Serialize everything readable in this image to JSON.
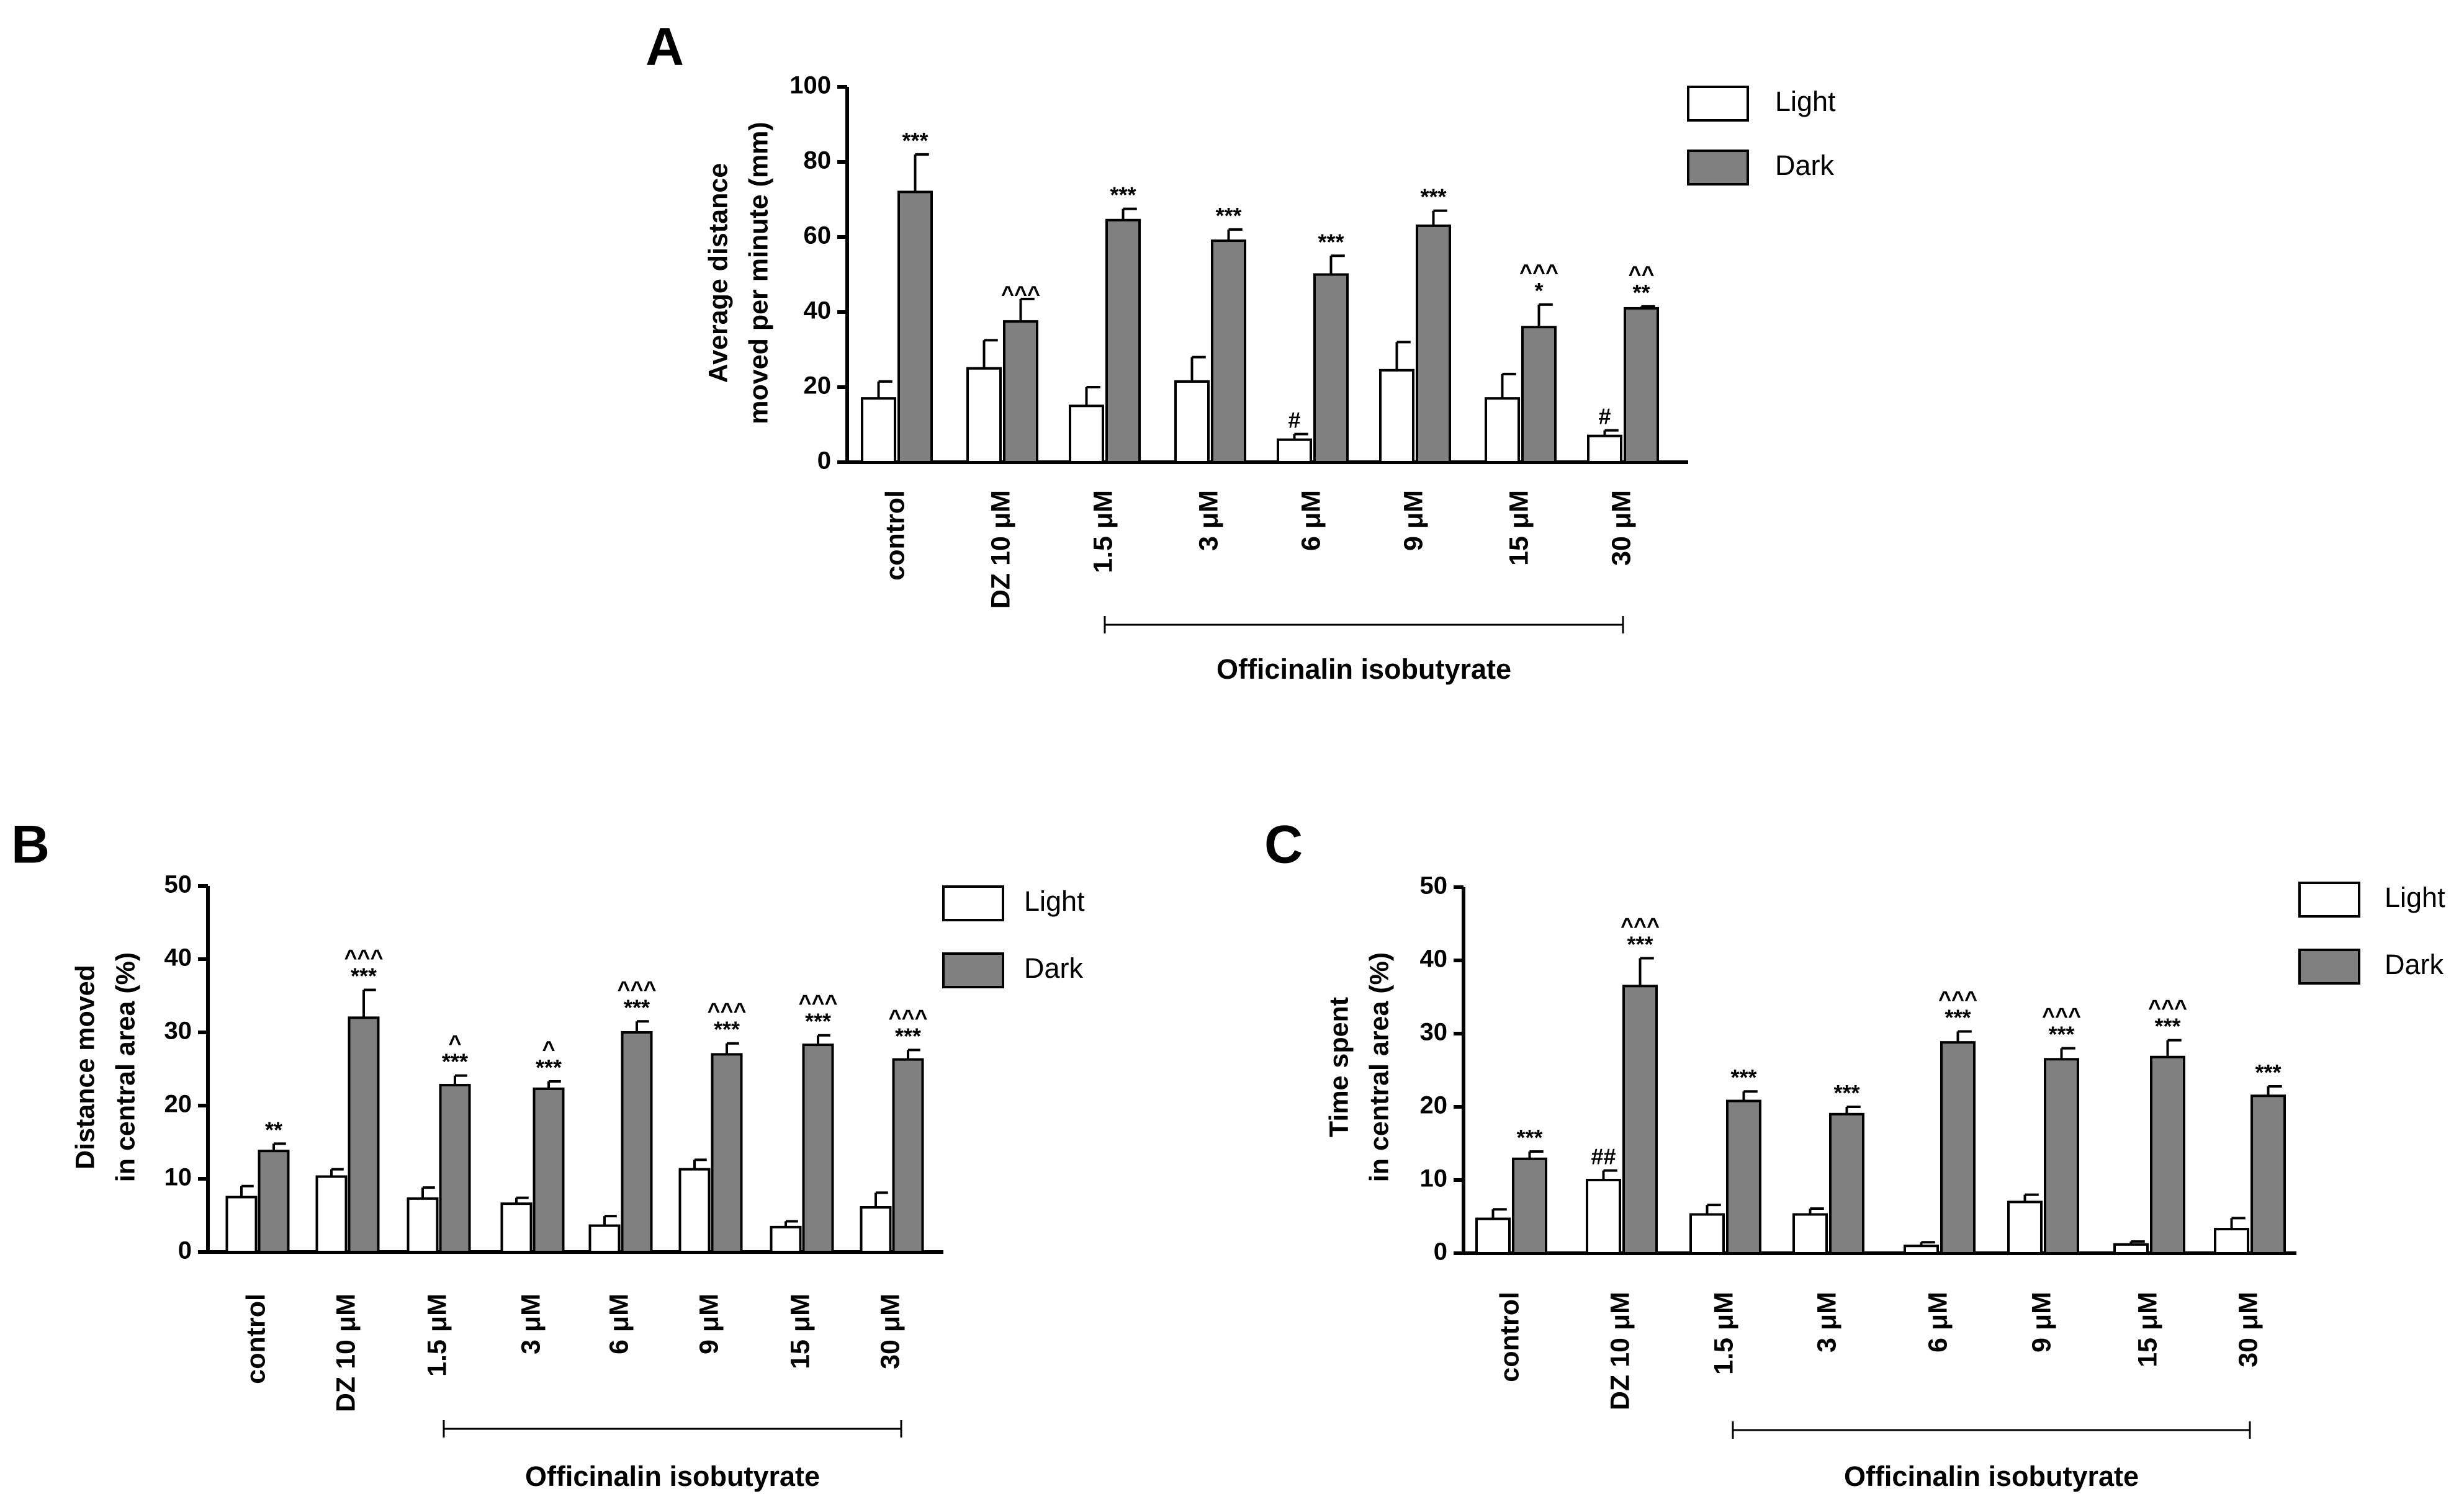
{
  "colors": {
    "light": "#ffffff",
    "dark": "#808080",
    "axis": "#000000"
  },
  "chart_data": [
    {
      "panel": "A",
      "type": "bar",
      "ylabel": "Average distance moved per minute (mm)",
      "ylabel_lines": [
        "Average distance",
        "moved per minute (mm)"
      ],
      "ylim": [
        0,
        100
      ],
      "yticks": [
        "0",
        "20",
        "40",
        "60",
        "80",
        "100"
      ],
      "categories": [
        "control",
        "DZ 10 μM",
        "1.5 μM",
        "3 μM",
        "6 μM",
        "9 μM",
        "15 μM",
        "30 μM"
      ],
      "legend": [
        "Light",
        "Dark"
      ],
      "group_label": "Officinalin isobutyrate",
      "series": [
        {
          "name": "Light",
          "values": [
            17,
            25,
            15,
            21.5,
            6,
            24.5,
            17,
            7
          ],
          "errors": [
            4.5,
            7.5,
            5,
            6.5,
            1.5,
            7.5,
            6.5,
            1.5
          ]
        },
        {
          "name": "Dark",
          "values": [
            72,
            37.5,
            64.5,
            59,
            50,
            63,
            36,
            41
          ],
          "errors": [
            10,
            6,
            3,
            3,
            5,
            4,
            6,
            0.5
          ]
        }
      ],
      "annotations": {
        "Light": [
          "",
          "",
          "",
          "",
          "#",
          "",
          "",
          "#"
        ],
        "Dark": [
          [
            "***"
          ],
          [
            "^^^"
          ],
          [
            "***"
          ],
          [
            "***"
          ],
          [
            "***"
          ],
          [
            "***"
          ],
          [
            "^^^",
            "*"
          ],
          [
            "^^",
            "**"
          ]
        ]
      }
    },
    {
      "panel": "B",
      "type": "bar",
      "ylabel": "Distance moved in central area (%)",
      "ylabel_lines": [
        "Distance moved",
        "in central area (%)"
      ],
      "ylim": [
        0,
        50
      ],
      "yticks": [
        "0",
        "10",
        "20",
        "30",
        "40",
        "50"
      ],
      "categories": [
        "control",
        "DZ 10 μM",
        "1.5 μM",
        "3 μM",
        "6 μM",
        "9 μM",
        "15 μM",
        "30 μM"
      ],
      "legend": [
        "Light",
        "Dark"
      ],
      "group_label": "Officinalin isobutyrate",
      "series": [
        {
          "name": "Light",
          "values": [
            7.5,
            10.3,
            7.3,
            6.6,
            3.6,
            11.3,
            3.4,
            6.1
          ],
          "errors": [
            1.5,
            1.0,
            1.5,
            0.8,
            1.3,
            1.3,
            0.8,
            2.0
          ]
        },
        {
          "name": "Dark",
          "values": [
            13.8,
            32,
            22.8,
            22.3,
            30,
            27,
            28.3,
            26.3
          ],
          "errors": [
            1.0,
            3.8,
            1.3,
            1.0,
            1.5,
            1.5,
            1.3,
            1.3
          ]
        }
      ],
      "annotations": {
        "Light": [
          "",
          "",
          "",
          "",
          "",
          "",
          "",
          ""
        ],
        "Dark": [
          [
            "**"
          ],
          [
            "^^^",
            "***"
          ],
          [
            "^",
            "***"
          ],
          [
            "^",
            "***"
          ],
          [
            "^^^",
            "***"
          ],
          [
            "^^^",
            "***"
          ],
          [
            "^^^",
            "***"
          ],
          [
            "^^^",
            "***"
          ]
        ]
      }
    },
    {
      "panel": "C",
      "type": "bar",
      "ylabel": "Time spent in central area (%)",
      "ylabel_lines": [
        "Time spent",
        "in central area (%)"
      ],
      "ylim": [
        0,
        50
      ],
      "yticks": [
        "0",
        "10",
        "20",
        "30",
        "40",
        "50"
      ],
      "categories": [
        "control",
        "DZ 10 μM",
        "1.5 μM",
        "3 μM",
        "6 μM",
        "9 μM",
        "15 μM",
        "30 μM"
      ],
      "legend": [
        "Light",
        "Dark"
      ],
      "group_label": "Officinalin isobutyrate",
      "series": [
        {
          "name": "Light",
          "values": [
            4.7,
            10,
            5.3,
            5.3,
            1.0,
            7.0,
            1.2,
            3.3
          ],
          "errors": [
            1.3,
            1.3,
            1.3,
            0.8,
            0.5,
            1.0,
            0.4,
            1.5
          ]
        },
        {
          "name": "Dark",
          "values": [
            12.9,
            36.5,
            20.8,
            19,
            28.8,
            26.5,
            26.8,
            21.5
          ],
          "errors": [
            1.0,
            3.8,
            1.3,
            1.0,
            1.5,
            1.5,
            2.3,
            1.3
          ]
        }
      ],
      "annotations": {
        "Light": [
          "",
          "##",
          "",
          "",
          "",
          "",
          "",
          ""
        ],
        "Dark": [
          [
            "***"
          ],
          [
            "^^^",
            "***"
          ],
          [
            "***"
          ],
          [
            "***"
          ],
          [
            "^^^",
            "***"
          ],
          [
            "^^^",
            "***"
          ],
          [
            "^^^",
            "***"
          ],
          [
            "***"
          ]
        ]
      }
    }
  ]
}
